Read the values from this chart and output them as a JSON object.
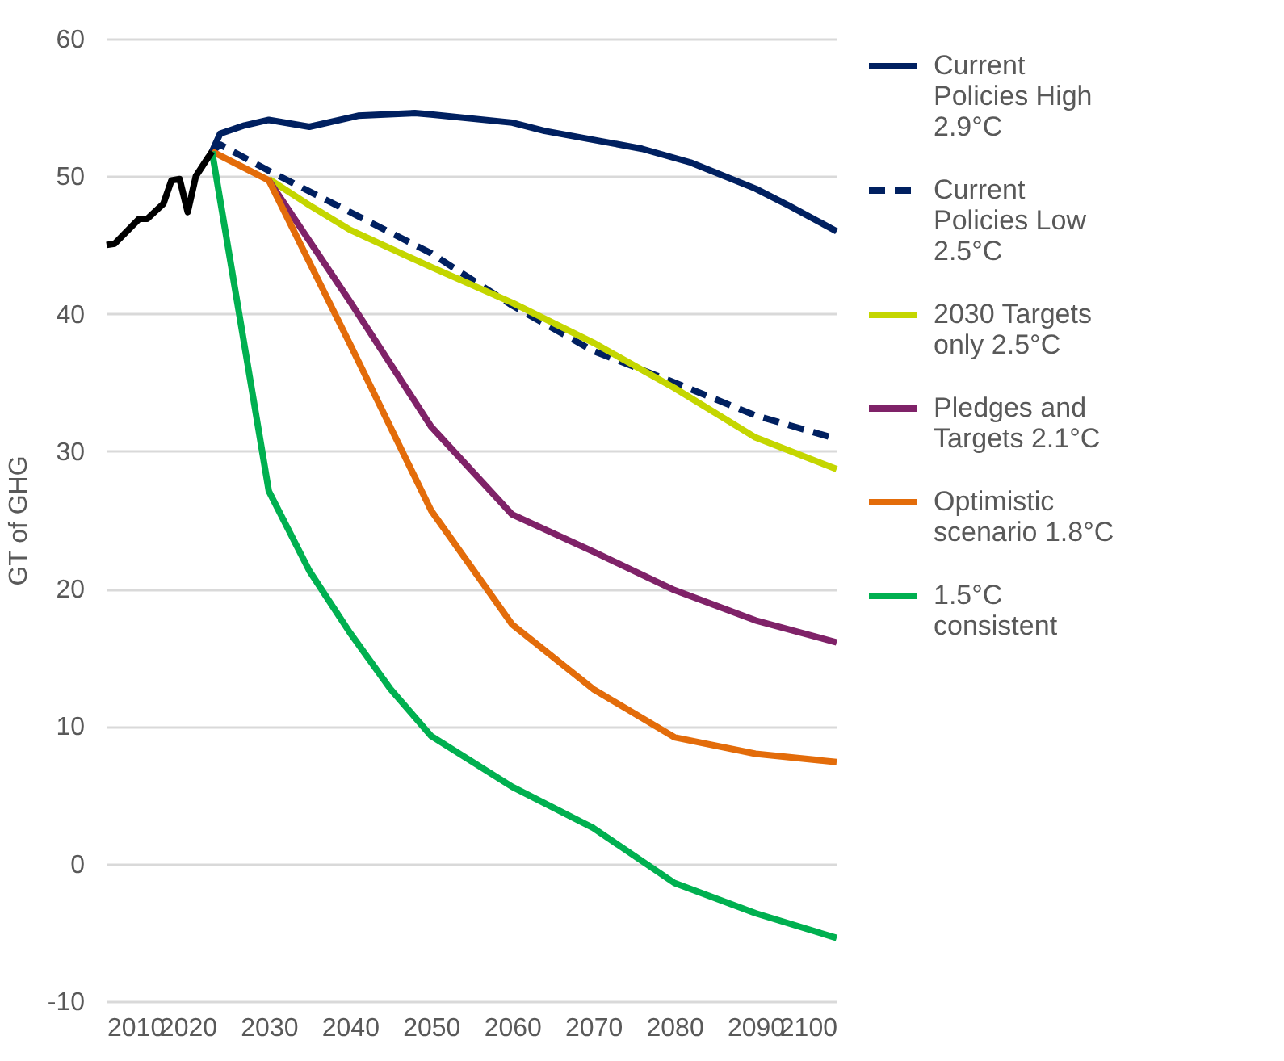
{
  "chart_data": {
    "type": "line",
    "ylabel": "GT of GHG",
    "xlim": [
      2010,
      2100
    ],
    "xticks": [
      2010,
      2020,
      2030,
      2040,
      2050,
      2060,
      2070,
      2080,
      2090,
      2100
    ],
    "ylim": [
      -10,
      60
    ],
    "yticks": [
      -10,
      0,
      10,
      20,
      30,
      40,
      50,
      60
    ],
    "grid": "y",
    "legend": "right",
    "series": [
      {
        "color": "#000000",
        "line_style": "solid",
        "x": [
          2010,
          2011,
          2014,
          2015,
          2017,
          2018,
          2019,
          2020,
          2021,
          2023
        ],
        "values": [
          45.0,
          45.1,
          46.9,
          46.9,
          48.0,
          49.7,
          49.8,
          47.4,
          50.0,
          51.8
        ]
      },
      {
        "name": "Current Policies High 2.9°C",
        "color": "#002060",
        "line_style": "solid",
        "x": [
          2023,
          2024,
          2027,
          2030,
          2035,
          2041,
          2048,
          2050,
          2060,
          2064,
          2076,
          2082,
          2090,
          2094,
          2100
        ],
        "values": [
          51.8,
          53.1,
          53.7,
          54.1,
          53.6,
          54.4,
          54.6,
          54.5,
          53.9,
          53.3,
          52.0,
          51.0,
          49.1,
          47.9,
          46.0
        ]
      },
      {
        "name": "Current Policies Low 2.5°C",
        "color": "#002060",
        "line_style": "dashed",
        "x": [
          2023,
          2024,
          2030,
          2050,
          2060,
          2070,
          2080,
          2090,
          2100
        ],
        "values": [
          51.8,
          52.3,
          50.4,
          44.4,
          40.6,
          37.3,
          35.0,
          32.6,
          30.9
        ]
      },
      {
        "name": "2030 Targets only 2.5°C",
        "color": "#c4d600",
        "line_style": "solid",
        "x": [
          2030,
          2035,
          2040,
          2050,
          2060,
          2070,
          2080,
          2090,
          2100
        ],
        "values": [
          49.8,
          47.9,
          46.1,
          43.4,
          40.8,
          37.9,
          34.6,
          31.0,
          28.7
        ]
      },
      {
        "name": "Pledges and Targets 2.1°C",
        "color": "#7f2268",
        "line_style": "solid",
        "x": [
          2030,
          2040,
          2050,
          2060,
          2070,
          2080,
          2090,
          2100
        ],
        "values": [
          49.7,
          40.9,
          31.8,
          25.4,
          22.7,
          19.9,
          17.7,
          16.1
        ]
      },
      {
        "name": "Optimistic scenario 1.8°C",
        "color": "#e36c0a",
        "line_style": "solid",
        "x": [
          2023,
          2030,
          2040,
          2050,
          2060,
          2070,
          2080,
          2090,
          2100
        ],
        "values": [
          51.8,
          49.7,
          37.8,
          25.7,
          17.4,
          12.7,
          9.2,
          8.0,
          7.4
        ]
      },
      {
        "name": "1.5°C consistent",
        "color": "#00b050",
        "line_style": "solid",
        "x": [
          2023,
          2030,
          2035,
          2040,
          2045,
          2050,
          2060,
          2070,
          2080,
          2090,
          2100
        ],
        "values": [
          51.8,
          27.1,
          21.3,
          16.8,
          12.7,
          9.3,
          5.6,
          2.6,
          -1.4,
          -3.6,
          -5.4
        ]
      }
    ]
  }
}
